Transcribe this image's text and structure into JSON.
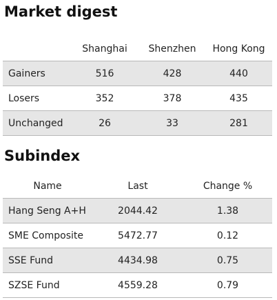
{
  "market_digest": {
    "title": "Market digest",
    "header": [
      "Shanghai",
      "Shenzhen",
      "Hong Kong"
    ],
    "rows": [
      [
        "Gainers",
        "516",
        "428",
        "440"
      ],
      [
        "Losers",
        "352",
        "378",
        "435"
      ],
      [
        "Unchanged",
        "26",
        "33",
        "281"
      ]
    ]
  },
  "subindex": {
    "title": "Subindex",
    "header": [
      "Name",
      "Last",
      "Change %"
    ],
    "rows": [
      [
        "Hang Seng A+H",
        "2044.42",
        "1.38"
      ],
      [
        "SME Composite",
        "5472.77",
        "0.12"
      ],
      [
        "SSE Fund",
        "4434.98",
        "0.75"
      ],
      [
        "SZSE Fund",
        "4559.28",
        "0.79"
      ]
    ]
  }
}
